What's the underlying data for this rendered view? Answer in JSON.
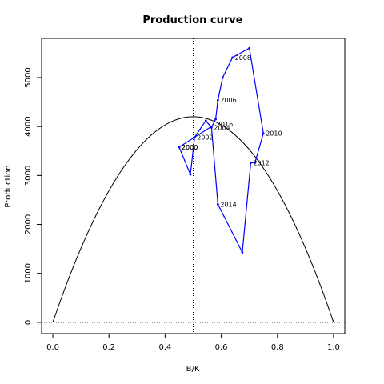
{
  "chart_data": {
    "type": "line",
    "title": "Production curve",
    "xlabel": "B/K",
    "ylabel": "Production",
    "xlim": [
      -0.04,
      1.04
    ],
    "ylim": [
      -230,
      5800
    ],
    "x_ticks": [
      0.0,
      0.2,
      0.4,
      0.6,
      0.8,
      1.0
    ],
    "x_tick_labels": [
      "0.0",
      "0.2",
      "0.4",
      "0.6",
      "0.8",
      "1.0"
    ],
    "y_ticks": [
      0,
      1000,
      2000,
      3000,
      4000,
      5000
    ],
    "y_tick_labels": [
      "0",
      "1000",
      "2000",
      "3000",
      "4000",
      "5000"
    ],
    "grid": false,
    "curve": {
      "type": "parabola",
      "r_K_over_4": 4200,
      "color": "#000000"
    },
    "reference_lines": {
      "vertical_x": 0.5,
      "horizontal_y": 0,
      "style": "dotted"
    },
    "series": [
      {
        "color": "#0000ff",
        "points": [
          {
            "x": 0.45,
            "y": 3580,
            "label": "2000"
          },
          {
            "x": 0.49,
            "y": 3020,
            "label": ""
          },
          {
            "x": 0.505,
            "y": 3780,
            "label": "2002"
          },
          {
            "x": 0.545,
            "y": 4120,
            "label": ""
          },
          {
            "x": 0.565,
            "y": 3980,
            "label": "2004"
          },
          {
            "x": 0.58,
            "y": 4150,
            "label": ""
          },
          {
            "x": 0.588,
            "y": 4540,
            "label": "2006"
          },
          {
            "x": 0.605,
            "y": 5000,
            "label": ""
          },
          {
            "x": 0.64,
            "y": 5410,
            "label": "2008"
          },
          {
            "x": 0.7,
            "y": 5600,
            "label": ""
          },
          {
            "x": 0.75,
            "y": 3860,
            "label": "2010"
          },
          {
            "x": 0.72,
            "y": 3260,
            "label": ""
          },
          {
            "x": 0.705,
            "y": 3260,
            "label": "2012"
          },
          {
            "x": 0.675,
            "y": 1430,
            "label": ""
          },
          {
            "x": 0.588,
            "y": 2410,
            "label": "2014"
          },
          {
            "x": 0.565,
            "y": 4000,
            "label": ""
          },
          {
            "x": 0.45,
            "y": 3580,
            "label": "2000"
          }
        ]
      }
    ],
    "extra_labels": [
      {
        "text": "2016",
        "x": 0.575,
        "y": 4050
      }
    ]
  }
}
